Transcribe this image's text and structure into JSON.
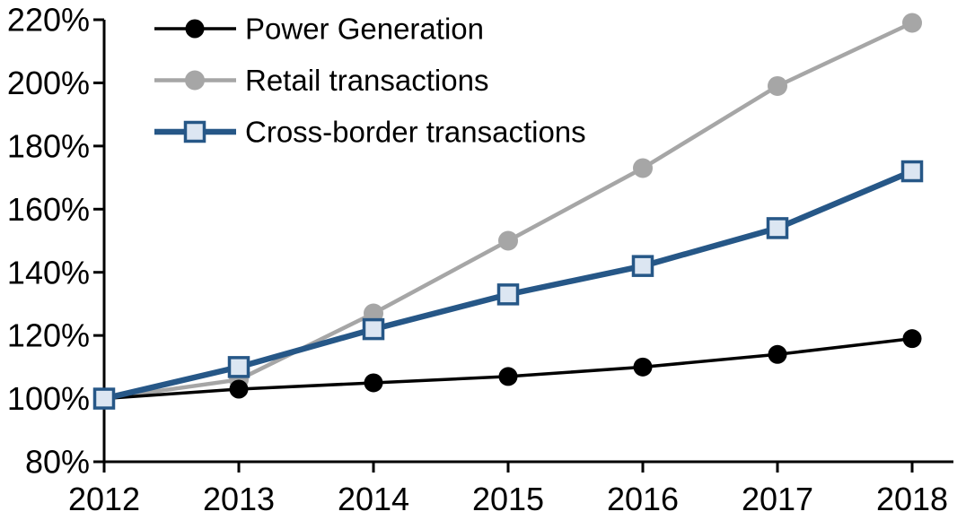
{
  "chart_data": {
    "type": "line",
    "title": "",
    "xlabel": "",
    "ylabel": "",
    "x": [
      2012,
      2013,
      2014,
      2015,
      2016,
      2017,
      2018
    ],
    "x_tick_labels": [
      "2012",
      "2013",
      "2014",
      "2015",
      "2016",
      "2017",
      "2018"
    ],
    "y_ticks": [
      220,
      200,
      180,
      160,
      140,
      120,
      100,
      80
    ],
    "y_tick_labels": [
      "220%",
      "200%",
      "180%",
      "160%",
      "140%",
      "120%",
      "100%",
      "80%"
    ],
    "ylim": [
      80,
      220
    ],
    "grid": false,
    "background": "#ffffff",
    "axis_color": "#000000",
    "legend_position": "top-left-inside",
    "series": [
      {
        "name": "Power Generation",
        "values": [
          100,
          103,
          105,
          107,
          110,
          114,
          119
        ],
        "color": "#000000",
        "marker": "circle",
        "marker_fill": "#000000",
        "marker_size": 10.5,
        "line_width": 3.5,
        "z": 2
      },
      {
        "name": "Retail transactions",
        "values": [
          100,
          106,
          127,
          150,
          173,
          199,
          219
        ],
        "color": "#a6a6a6",
        "marker": "circle",
        "marker_fill": "#a6a6a6",
        "marker_size": 11,
        "line_width": 4.5,
        "z": 1
      },
      {
        "name": "Cross-border transactions",
        "values": [
          100,
          110,
          122,
          133,
          142,
          154,
          172
        ],
        "color": "#265787",
        "marker": "square",
        "marker_fill": "#dce6f2",
        "marker_size": 10.5,
        "line_width": 6.5,
        "z": 3
      }
    ]
  }
}
